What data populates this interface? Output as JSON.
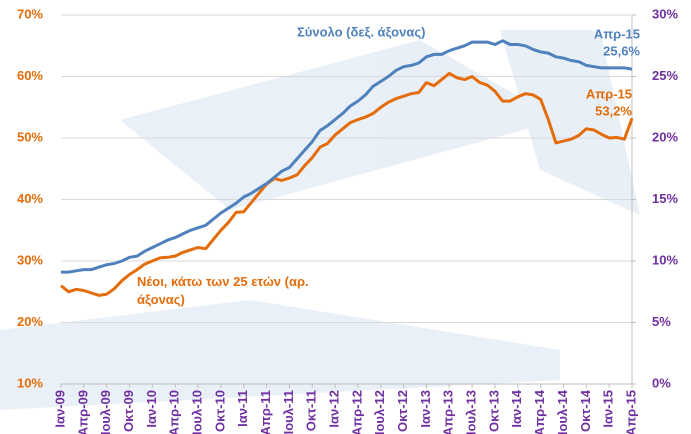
{
  "chart_data": {
    "type": "line",
    "categories": [
      "Ιαν-09",
      null,
      null,
      "Απρ-09",
      null,
      null,
      "Ιουλ-09",
      null,
      null,
      "Οκτ-09",
      null,
      null,
      "Ιαν-10",
      null,
      null,
      "Απρ-10",
      null,
      null,
      "Ιουλ-10",
      null,
      null,
      "Οκτ-10",
      null,
      null,
      "Ιαν-11",
      null,
      null,
      "Απρ-11",
      null,
      null,
      "Ιουλ-11",
      null,
      null,
      "Οκτ-11",
      null,
      null,
      "Ιαν-12",
      null,
      null,
      "Απρ-12",
      null,
      null,
      "Ιουλ-12",
      null,
      null,
      "Οκτ-12",
      null,
      null,
      "Ιαν-13",
      null,
      null,
      "Απρ-13",
      null,
      null,
      "Ιουλ-13",
      null,
      null,
      "Οκτ-13",
      null,
      null,
      "Ιαν-14",
      null,
      null,
      "Απρ-14",
      null,
      null,
      "Ιουλ-14",
      null,
      null,
      "Οκτ-14",
      null,
      null,
      "Ιαν-15",
      null,
      null,
      "Απρ-15"
    ],
    "series": [
      {
        "name": "Νέοι, κάτω των 25 ετών (αρ. άξονας)",
        "color": "#e46c0a",
        "axis": "y",
        "end_date_label": "Απρ-15",
        "end_value_label": "53,2%",
        "values": [
          26.0,
          25.0,
          25.4,
          25.2,
          24.8,
          24.4,
          24.6,
          25.5,
          26.8,
          27.8,
          28.6,
          29.5,
          30.0,
          30.5,
          30.6,
          30.8,
          31.4,
          31.8,
          32.2,
          32.0,
          33.5,
          35.0,
          36.3,
          37.9,
          38.0,
          39.5,
          41.0,
          42.5,
          43.4,
          43.1,
          43.5,
          44.0,
          45.5,
          46.8,
          48.5,
          49.1,
          50.5,
          51.5,
          52.5,
          53.0,
          53.4,
          54.0,
          55.0,
          55.8,
          56.4,
          56.8,
          57.2,
          57.4,
          59.0,
          58.5,
          59.5,
          60.5,
          59.8,
          59.5,
          60.0,
          59.0,
          58.6,
          57.6,
          56.0,
          56.0,
          56.7,
          57.2,
          57.0,
          56.3,
          53.0,
          49.2,
          49.5,
          49.8,
          50.4,
          51.5,
          51.3,
          50.6,
          50.0,
          50.1,
          49.8,
          53.2
        ]
      },
      {
        "name": "Σύνολο (δεξ. άξονας)",
        "color": "#4f81bd",
        "axis": "y2",
        "end_date_label": "Απρ-15",
        "end_value_label": "25,6%",
        "values": [
          9.1,
          9.1,
          9.2,
          9.3,
          9.3,
          9.5,
          9.7,
          9.8,
          10.0,
          10.3,
          10.4,
          10.8,
          11.1,
          11.4,
          11.7,
          11.9,
          12.2,
          12.5,
          12.7,
          12.9,
          13.4,
          13.9,
          14.3,
          14.7,
          15.2,
          15.5,
          15.9,
          16.3,
          16.8,
          17.3,
          17.6,
          18.3,
          19.0,
          19.7,
          20.6,
          21.0,
          21.5,
          22.0,
          22.6,
          23.0,
          23.5,
          24.2,
          24.6,
          25.0,
          25.5,
          25.8,
          25.9,
          26.1,
          26.6,
          26.8,
          26.8,
          27.1,
          27.3,
          27.5,
          27.8,
          27.8,
          27.8,
          27.6,
          27.9,
          27.6,
          27.6,
          27.5,
          27.2,
          27.0,
          26.9,
          26.6,
          26.5,
          26.3,
          26.2,
          25.9,
          25.8,
          25.7,
          25.7,
          25.7,
          25.7,
          25.6
        ]
      }
    ],
    "ylim": [
      10,
      70
    ],
    "yticks": [
      {
        "value": 10,
        "label": "10%"
      },
      {
        "value": 20,
        "label": "20%"
      },
      {
        "value": 30,
        "label": "30%"
      },
      {
        "value": 40,
        "label": "40%"
      },
      {
        "value": 50,
        "label": "50%"
      },
      {
        "value": 60,
        "label": "60%"
      },
      {
        "value": 70,
        "label": "70%"
      }
    ],
    "y2lim": [
      0,
      30
    ],
    "y2ticks": [
      {
        "value": 0,
        "label": "0%"
      },
      {
        "value": 5,
        "label": "5%"
      },
      {
        "value": 10,
        "label": "10%"
      },
      {
        "value": 15,
        "label": "15%"
      },
      {
        "value": 20,
        "label": "20%"
      },
      {
        "value": 25,
        "label": "25%"
      },
      {
        "value": 30,
        "label": "30%"
      }
    ],
    "grid": true
  }
}
